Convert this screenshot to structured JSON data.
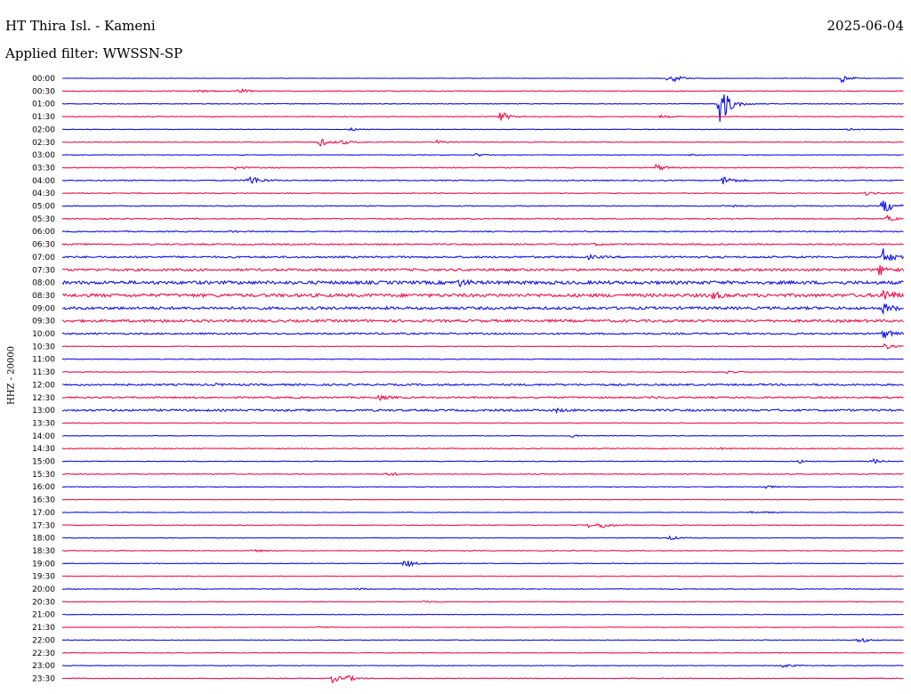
{
  "header": {
    "title": "HT Thira Isl. - Kameni",
    "date": "2025-06-04",
    "filter": "Applied filter: WWSSN-SP"
  },
  "colors": {
    "even": "#1010e6",
    "odd": "#f0104a"
  },
  "chart_data": {
    "type": "line",
    "title": "HT Thira Isl. - Kameni",
    "ylabel": "HHZ - 20000",
    "grid": false,
    "legend": "none",
    "rows": [
      {
        "label": "00:00",
        "noise": 0.25,
        "events": [
          [
            0.72,
            8
          ],
          [
            0.925,
            5
          ]
        ]
      },
      {
        "label": "00:30",
        "noise": 0.4,
        "events": [
          [
            0.16,
            2
          ],
          [
            0.21,
            3
          ]
        ]
      },
      {
        "label": "01:00",
        "noise": 0.35,
        "events": [
          [
            0.78,
            30
          ]
        ]
      },
      {
        "label": "01:30",
        "noise": 0.4,
        "events": [
          [
            0.52,
            6
          ],
          [
            0.71,
            2
          ]
        ]
      },
      {
        "label": "02:00",
        "noise": 0.3,
        "events": [
          [
            0.34,
            2
          ],
          [
            0.93,
            2
          ]
        ]
      },
      {
        "label": "02:30",
        "noise": 0.4,
        "events": [
          [
            0.305,
            5
          ],
          [
            0.33,
            3
          ],
          [
            0.445,
            2
          ]
        ]
      },
      {
        "label": "03:00",
        "noise": 0.3,
        "events": [
          [
            0.49,
            2
          ],
          [
            0.745,
            1
          ]
        ]
      },
      {
        "label": "03:30",
        "noise": 0.45,
        "events": [
          [
            0.205,
            2
          ],
          [
            0.705,
            4
          ],
          [
            0.94,
            1
          ]
        ]
      },
      {
        "label": "04:00",
        "noise": 0.6,
        "events": [
          [
            0.22,
            8
          ],
          [
            0.785,
            6
          ]
        ]
      },
      {
        "label": "04:30",
        "noise": 0.45,
        "events": [
          [
            0.955,
            2
          ]
        ]
      },
      {
        "label": "05:00",
        "noise": 0.5,
        "events": [
          [
            0.785,
            3
          ],
          [
            0.975,
            10
          ]
        ]
      },
      {
        "label": "05:30",
        "noise": 0.6,
        "events": [
          [
            0.98,
            3
          ]
        ]
      },
      {
        "label": "06:00",
        "noise": 0.6,
        "events": [
          [
            0.2,
            1
          ]
        ]
      },
      {
        "label": "06:30",
        "noise": 0.8,
        "events": [
          [
            0.63,
            1
          ]
        ]
      },
      {
        "label": "07:00",
        "noise": 1.0,
        "events": [
          [
            0.625,
            2
          ],
          [
            0.975,
            10
          ]
        ]
      },
      {
        "label": "07:30",
        "noise": 1.3,
        "events": [
          [
            0.97,
            6
          ]
        ]
      },
      {
        "label": "08:00",
        "noise": 1.8,
        "events": [
          [
            0.47,
            4
          ]
        ]
      },
      {
        "label": "08:30",
        "noise": 1.8,
        "events": [
          [
            0.77,
            5
          ],
          [
            0.975,
            8
          ]
        ]
      },
      {
        "label": "09:00",
        "noise": 1.5,
        "events": [
          [
            0.975,
            6
          ]
        ]
      },
      {
        "label": "09:30",
        "noise": 1.4,
        "events": [
          [
            0.12,
            1
          ]
        ]
      },
      {
        "label": "10:00",
        "noise": 0.9,
        "events": [
          [
            0.975,
            6
          ]
        ]
      },
      {
        "label": "10:30",
        "noise": 0.4,
        "events": [
          [
            0.975,
            4
          ]
        ]
      },
      {
        "label": "11:00",
        "noise": 0.4,
        "events": []
      },
      {
        "label": "11:30",
        "noise": 0.4,
        "events": [
          [
            0.79,
            2
          ]
        ]
      },
      {
        "label": "12:00",
        "noise": 1.0,
        "events": [
          [
            0.18,
            1
          ]
        ]
      },
      {
        "label": "12:30",
        "noise": 0.9,
        "events": [
          [
            0.375,
            3
          ],
          [
            0.7,
            1
          ]
        ]
      },
      {
        "label": "13:00",
        "noise": 1.1,
        "events": [
          [
            0.585,
            2
          ]
        ]
      },
      {
        "label": "13:30",
        "noise": 0.4,
        "events": []
      },
      {
        "label": "14:00",
        "noise": 0.3,
        "events": [
          [
            0.605,
            2
          ]
        ]
      },
      {
        "label": "14:30",
        "noise": 0.5,
        "events": [
          [
            0.78,
            1
          ]
        ]
      },
      {
        "label": "15:00",
        "noise": 0.4,
        "events": [
          [
            0.875,
            2
          ],
          [
            0.962,
            3
          ]
        ]
      },
      {
        "label": "15:30",
        "noise": 0.5,
        "events": [
          [
            0.385,
            3
          ]
        ]
      },
      {
        "label": "16:00",
        "noise": 0.3,
        "events": [
          [
            0.835,
            2
          ]
        ]
      },
      {
        "label": "16:30",
        "noise": 0.3,
        "events": []
      },
      {
        "label": "17:00",
        "noise": 0.3,
        "events": [
          [
            0.815,
            1
          ],
          [
            0.835,
            1
          ]
        ]
      },
      {
        "label": "17:30",
        "noise": 0.4,
        "events": [
          [
            0.625,
            3
          ],
          [
            0.64,
            4
          ]
        ]
      },
      {
        "label": "18:00",
        "noise": 0.3,
        "events": [
          [
            0.72,
            3
          ]
        ]
      },
      {
        "label": "18:30",
        "noise": 0.4,
        "events": [
          [
            0.225,
            2
          ]
        ]
      },
      {
        "label": "19:00",
        "noise": 0.3,
        "events": [
          [
            0.405,
            6
          ]
        ]
      },
      {
        "label": "19:30",
        "noise": 0.3,
        "events": []
      },
      {
        "label": "20:00",
        "noise": 0.4,
        "events": [
          [
            0.35,
            1
          ]
        ]
      },
      {
        "label": "20:30",
        "noise": 0.3,
        "events": [
          [
            0.43,
            2
          ]
        ]
      },
      {
        "label": "21:00",
        "noise": 0.3,
        "events": []
      },
      {
        "label": "21:30",
        "noise": 0.3,
        "events": [
          [
            0.305,
            1
          ]
        ]
      },
      {
        "label": "22:00",
        "noise": 0.3,
        "events": [
          [
            0.945,
            4
          ]
        ]
      },
      {
        "label": "22:30",
        "noise": 0.3,
        "events": []
      },
      {
        "label": "23:00",
        "noise": 0.35,
        "events": [
          [
            0.855,
            3
          ]
        ]
      },
      {
        "label": "23:30",
        "noise": 0.4,
        "events": [
          [
            0.32,
            5
          ],
          [
            0.335,
            4
          ]
        ]
      }
    ]
  }
}
